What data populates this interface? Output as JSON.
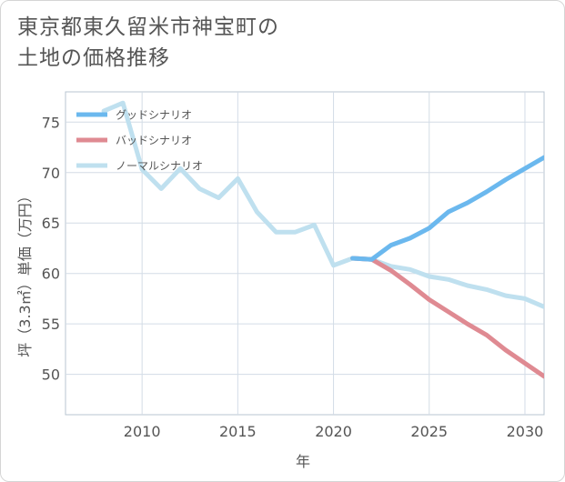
{
  "title_lines": [
    "東京都東久留米市神宝町の",
    "土地の価格推移"
  ],
  "chart_data": {
    "type": "line",
    "title": "東京都東久留米市神宝町の土地の価格推移",
    "xlabel": "年",
    "ylabel": "坪（3.3㎡）単価（万円）",
    "xlim": [
      2006,
      2031
    ],
    "ylim": [
      46,
      78
    ],
    "xticks": [
      2010,
      2015,
      2020,
      2025,
      2030
    ],
    "yticks": [
      50,
      55,
      60,
      65,
      70,
      75
    ],
    "legend_position": "top-left",
    "series": [
      {
        "name": "グッドシナリオ",
        "color": "#6bb8ee",
        "x": [
          2021,
          2022,
          2023,
          2024,
          2025,
          2026,
          2027,
          2028,
          2029,
          2030,
          2031
        ],
        "y": [
          61.5,
          61.4,
          62.8,
          63.5,
          64.5,
          66.1,
          67.0,
          68.1,
          69.3,
          70.4,
          71.5
        ]
      },
      {
        "name": "バッドシナリオ",
        "color": "#df8a92",
        "x": [
          2021,
          2022,
          2023,
          2024,
          2025,
          2026,
          2027,
          2028,
          2029,
          2030,
          2031
        ],
        "y": [
          61.5,
          61.4,
          60.3,
          58.9,
          57.4,
          56.2,
          55.0,
          53.9,
          52.4,
          51.1,
          49.8
        ]
      },
      {
        "name": "ノーマルシナリオ",
        "color": "#bfe0ef",
        "x": [
          2008,
          2009,
          2010,
          2011,
          2012,
          2013,
          2014,
          2015,
          2016,
          2017,
          2018,
          2019,
          2020,
          2021,
          2022,
          2023,
          2024,
          2025,
          2026,
          2027,
          2028,
          2029,
          2030,
          2031
        ],
        "y": [
          76.1,
          76.9,
          70.3,
          68.4,
          70.4,
          68.4,
          67.5,
          69.4,
          66.1,
          64.1,
          64.1,
          64.8,
          60.8,
          61.5,
          61.4,
          60.7,
          60.4,
          59.7,
          59.4,
          58.8,
          58.4,
          57.8,
          57.5,
          56.7
        ]
      }
    ]
  }
}
